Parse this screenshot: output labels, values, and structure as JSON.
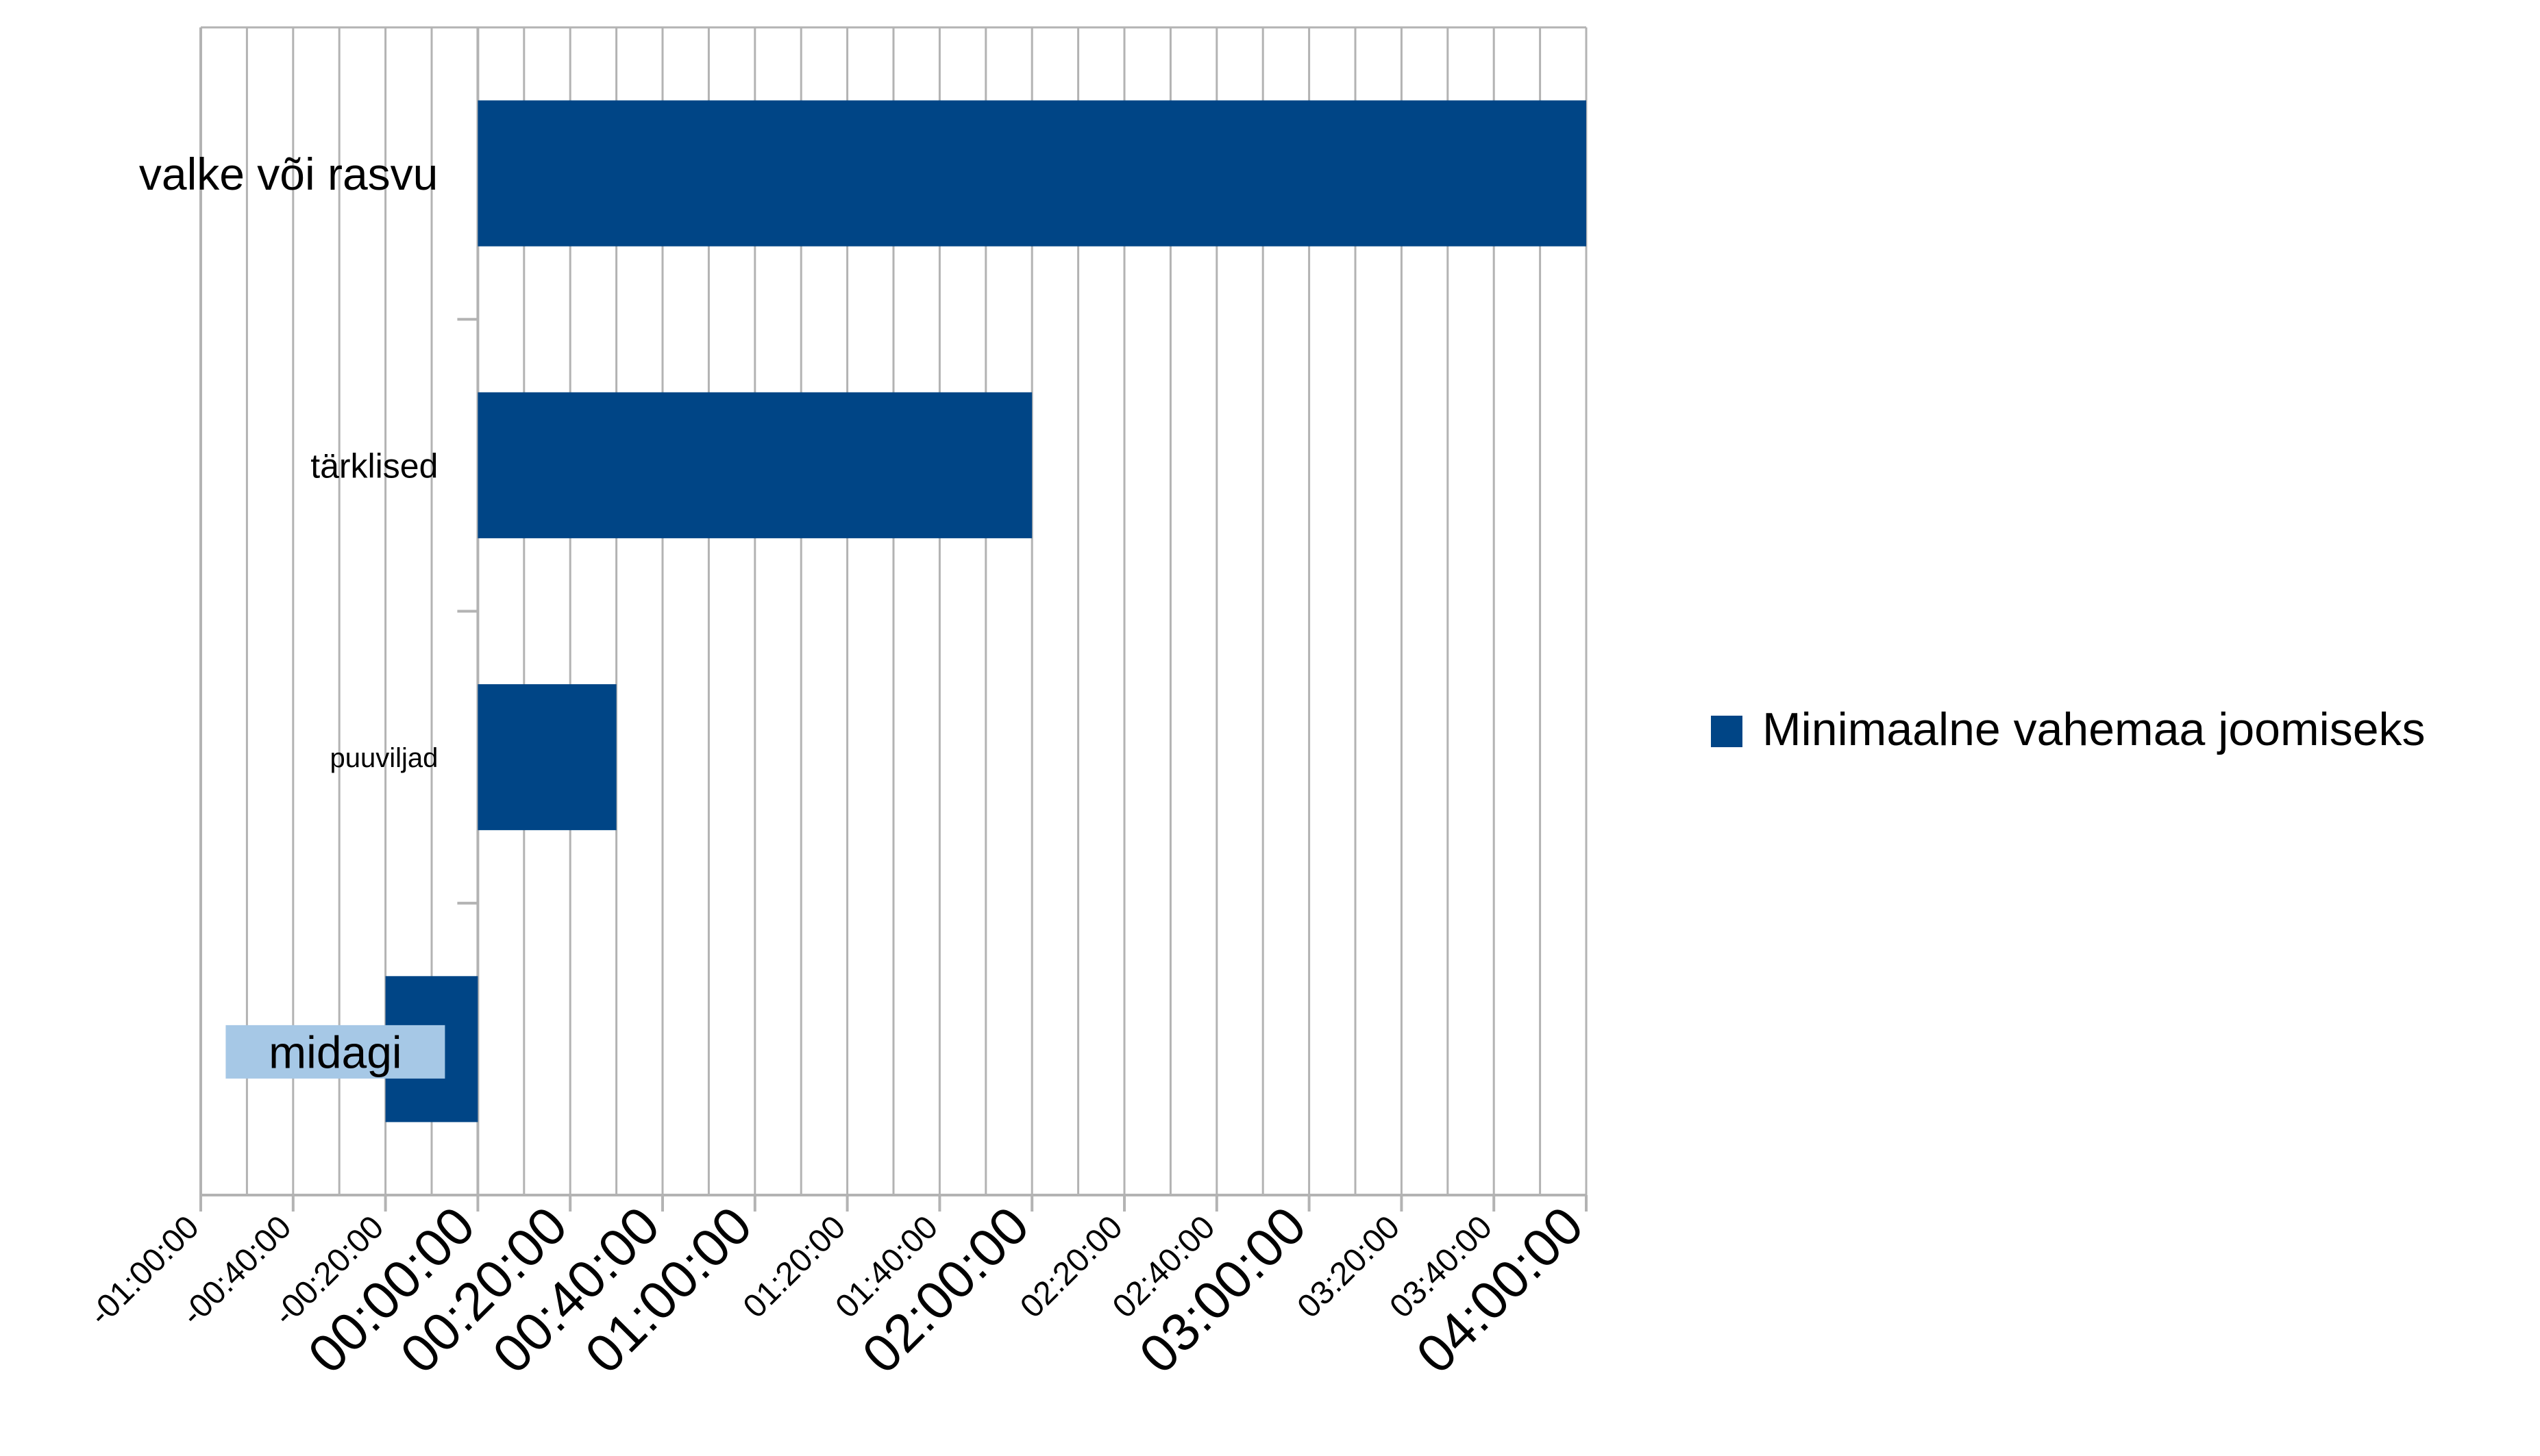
{
  "chart_data": {
    "type": "bar",
    "orientation": "horizontal",
    "title": "",
    "xlabel": "",
    "ylabel": "",
    "categories": [
      "valke või rasvu",
      "tärklised",
      "puuviljad",
      "midagi"
    ],
    "series": [
      {
        "name": "Minimaalne vahemaa joomiseks",
        "values": [
          "04:00:00",
          "02:00:00",
          "00:30:00",
          "-00:20:00"
        ],
        "minutes": [
          240,
          120,
          30,
          -20
        ],
        "color": "#004586"
      }
    ],
    "xlim_minutes": [
      -60,
      240
    ],
    "x_tick_labels": [
      "-01:00:00",
      "-00:40:00",
      "-00:20:00",
      "00:00:00",
      "00:20:00",
      "00:40:00",
      "01:00:00",
      "01:20:00",
      "01:40:00",
      "02:00:00",
      "02:20:00",
      "02:40:00",
      "03:00:00",
      "03:20:00",
      "03:40:00",
      "04:00:00"
    ],
    "x_tick_minutes": [
      -60,
      -40,
      -20,
      0,
      20,
      40,
      60,
      80,
      100,
      120,
      140,
      160,
      180,
      200,
      220,
      240
    ],
    "grid": true,
    "legend_position": "right",
    "highlight_category_color": "#a6c8e6"
  }
}
